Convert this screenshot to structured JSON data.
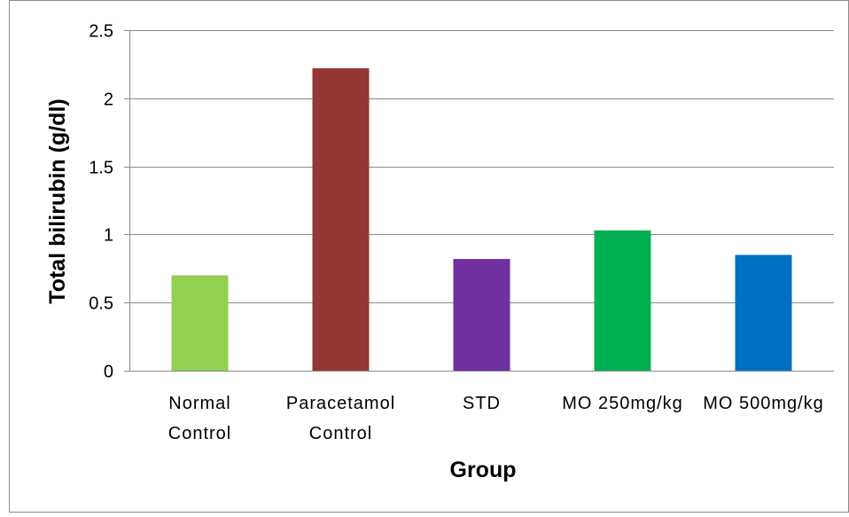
{
  "chart_data": {
    "type": "bar",
    "title": "",
    "xlabel": "Group",
    "ylabel": "Total bilirubin (g/dl)",
    "ylim": [
      0,
      2.5
    ],
    "yticks": [
      "0",
      "0.5",
      "1",
      "1.5",
      "2",
      "2.5"
    ],
    "categories": [
      [
        "Normal",
        "Control"
      ],
      [
        "Paracetamol",
        "Control"
      ],
      [
        "STD"
      ],
      [
        "MO 250mg/kg"
      ],
      [
        "MO 500mg/kg"
      ]
    ],
    "values": [
      0.7,
      2.22,
      0.82,
      1.03,
      0.85
    ],
    "colors": [
      "#92d050",
      "#953735",
      "#7030a0",
      "#00b050",
      "#0070c0"
    ],
    "grid": true,
    "legend": "none"
  }
}
